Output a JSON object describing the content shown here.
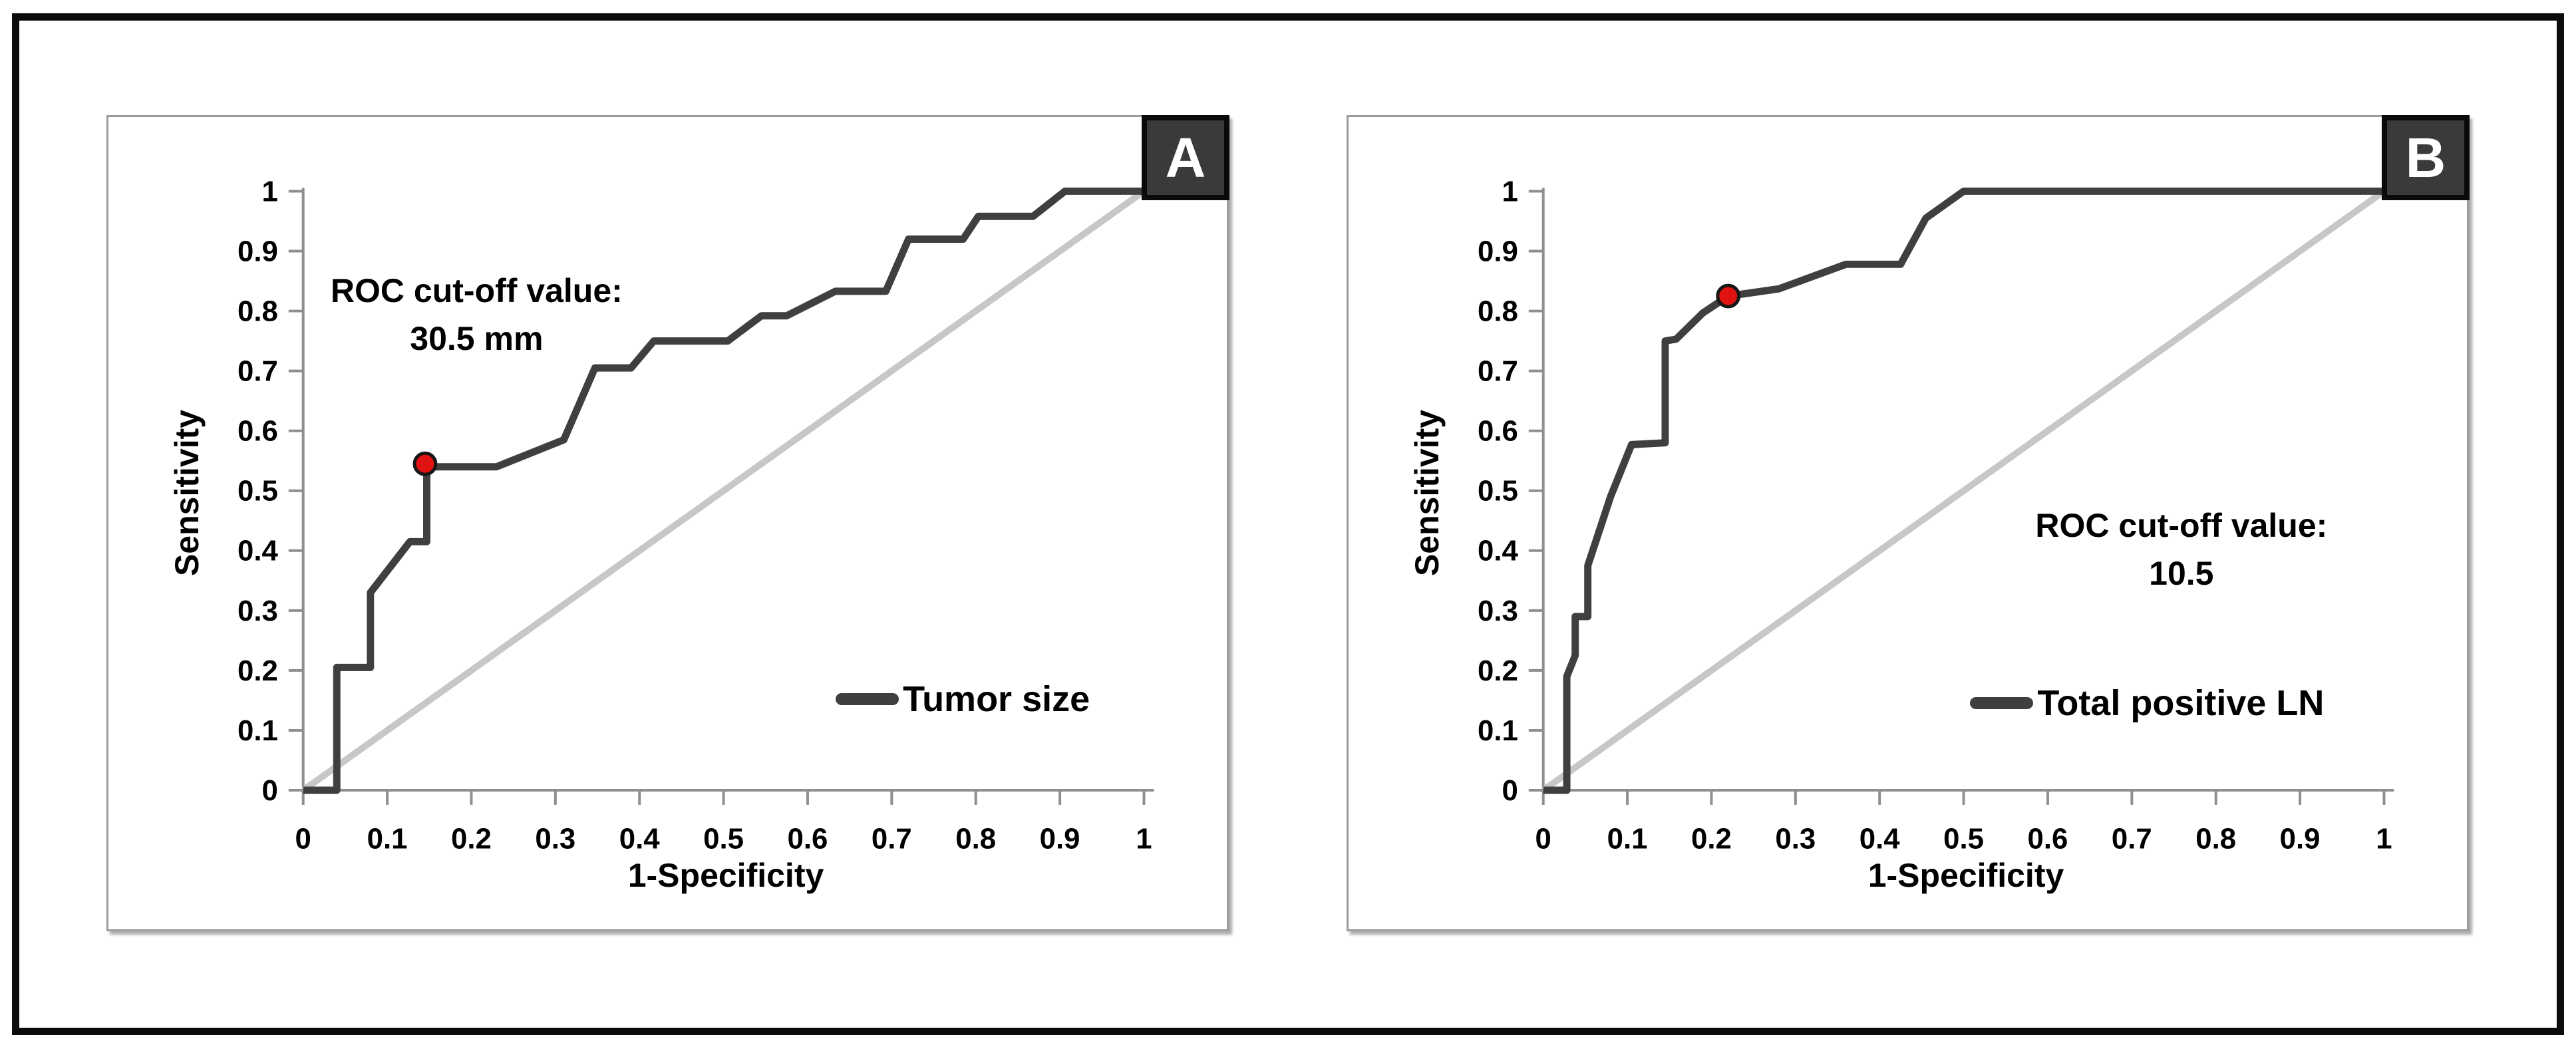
{
  "figure": {
    "type": "roc-curves-figure",
    "panels_count": 2
  },
  "colors": {
    "curve": "#3f3f3f",
    "diagonal_reference": "#c7c7c7",
    "axis": "#8f8f8f",
    "tick_text": "#000000",
    "cutoff_dot_fill": "#e11212",
    "cutoff_dot_stroke": "#161616",
    "badge_background": "#3a3a3a",
    "badge_border": "#0a0a0a",
    "panel_border": "#9c9c9c",
    "frame_border": "#0b0b0b"
  },
  "chart_data": [
    {
      "type": "line",
      "panel_letter": "A",
      "xlabel": "1-Specificity",
      "ylabel": "Sensitivity",
      "xlim": [
        0,
        1
      ],
      "ylim": [
        0,
        1
      ],
      "grid": false,
      "x_ticks": [
        "0",
        "0.1",
        "0.2",
        "0.3",
        "0.4",
        "0.5",
        "0.6",
        "0.7",
        "0.8",
        "0.9",
        "1"
      ],
      "y_ticks": [
        "0",
        "0.1",
        "0.2",
        "0.3",
        "0.4",
        "0.5",
        "0.6",
        "0.7",
        "0.8",
        "0.9",
        "1"
      ],
      "legend": {
        "label": "Tumor size",
        "position": "inside lower-right",
        "x": 0.63,
        "y": 0.155
      },
      "annotation": {
        "line1": "ROC cut-off value:",
        "line2": "30.5 mm",
        "x": 0.205,
        "y": 0.835
      },
      "cutoff_point": {
        "x": 0.145,
        "y": 0.545
      },
      "reference_line": {
        "from": [
          0,
          0
        ],
        "to": [
          1,
          1
        ]
      },
      "series": [
        {
          "name": "Tumor size",
          "points": [
            [
              0,
              0
            ],
            [
              0.04,
              0
            ],
            [
              0.04,
              0.205
            ],
            [
              0.08,
              0.205
            ],
            [
              0.08,
              0.33
            ],
            [
              0.127,
              0.415
            ],
            [
              0.147,
              0.415
            ],
            [
              0.147,
              0.54
            ],
            [
              0.23,
              0.54
            ],
            [
              0.31,
              0.585
            ],
            [
              0.347,
              0.705
            ],
            [
              0.39,
              0.705
            ],
            [
              0.417,
              0.75
            ],
            [
              0.505,
              0.75
            ],
            [
              0.545,
              0.792
            ],
            [
              0.575,
              0.792
            ],
            [
              0.633,
              0.833
            ],
            [
              0.693,
              0.833
            ],
            [
              0.72,
              0.92
            ],
            [
              0.785,
              0.92
            ],
            [
              0.803,
              0.958
            ],
            [
              0.868,
              0.958
            ],
            [
              0.906,
              1
            ],
            [
              1,
              1
            ]
          ]
        }
      ]
    },
    {
      "type": "line",
      "panel_letter": "B",
      "xlabel": "1-Specificity",
      "ylabel": "Sensitivity",
      "xlim": [
        0,
        1
      ],
      "ylim": [
        0,
        1
      ],
      "grid": false,
      "x_ticks": [
        "0",
        "0.1",
        "0.2",
        "0.3",
        "0.4",
        "0.5",
        "0.6",
        "0.7",
        "0.8",
        "0.9",
        "1"
      ],
      "y_ticks": [
        "0",
        "0.1",
        "0.2",
        "0.3",
        "0.4",
        "0.5",
        "0.6",
        "0.7",
        "0.8",
        "0.9",
        "1"
      ],
      "legend": {
        "label": "Total positive LN",
        "position": "inside lower-right",
        "x": 0.505,
        "y": 0.148
      },
      "annotation": {
        "line1": "ROC cut-off value:",
        "line2": "10.5",
        "x": 0.755,
        "y": 0.445
      },
      "cutoff_point": {
        "x": 0.22,
        "y": 0.825
      },
      "reference_line": {
        "from": [
          0,
          0
        ],
        "to": [
          1,
          1
        ]
      },
      "series": [
        {
          "name": "Total positive LN",
          "points": [
            [
              0,
              0
            ],
            [
              0.028,
              0
            ],
            [
              0.028,
              0.19
            ],
            [
              0.038,
              0.225
            ],
            [
              0.038,
              0.29
            ],
            [
              0.053,
              0.29
            ],
            [
              0.053,
              0.375
            ],
            [
              0.08,
              0.49
            ],
            [
              0.105,
              0.577
            ],
            [
              0.145,
              0.58
            ],
            [
              0.145,
              0.75
            ],
            [
              0.158,
              0.753
            ],
            [
              0.19,
              0.797
            ],
            [
              0.22,
              0.825
            ],
            [
              0.28,
              0.837
            ],
            [
              0.36,
              0.878
            ],
            [
              0.425,
              0.878
            ],
            [
              0.455,
              0.955
            ],
            [
              0.5,
              1
            ],
            [
              1,
              1
            ]
          ]
        }
      ]
    }
  ]
}
